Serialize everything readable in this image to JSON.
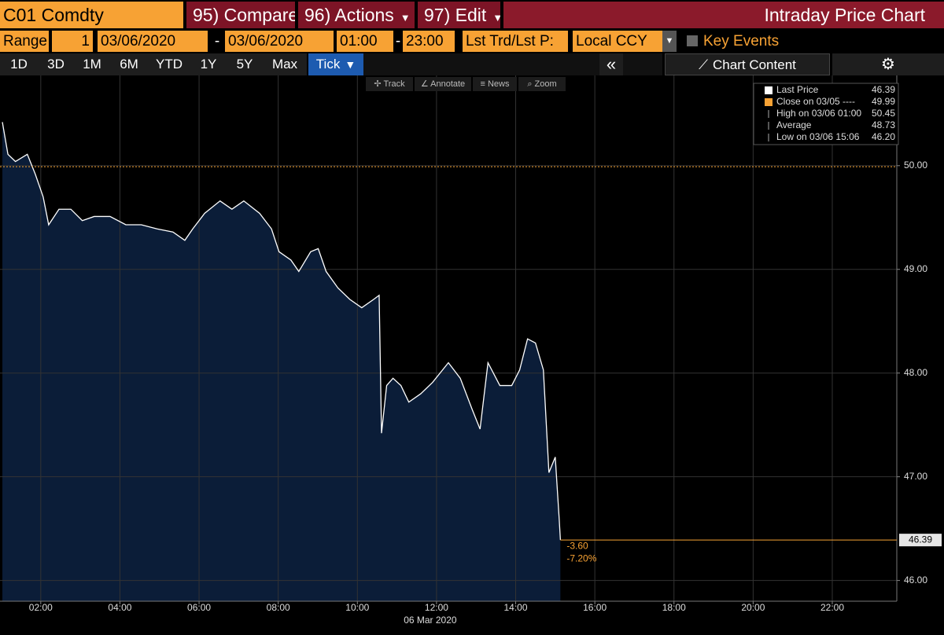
{
  "header": {
    "security": "C01 Comdty",
    "menu": [
      "95) Compare",
      "96) Actions",
      "97) Edit"
    ],
    "title": "Intraday Price Chart"
  },
  "range_bar": {
    "label": "Range",
    "period": "1",
    "start_date": "03/06/2020",
    "separator": "-",
    "end_date": "03/06/2020",
    "start_time": "01:00",
    "end_time": "23:00",
    "price_field": "Lst Trd/Lst P:",
    "currency": "Local CCY",
    "key_events": "Key Events"
  },
  "periods": [
    "1D",
    "3D",
    "1M",
    "6M",
    "YTD",
    "1Y",
    "5Y",
    "Max",
    "Tick"
  ],
  "chart_content": "Chart Content",
  "chart_toolbar": [
    "Track",
    "Annotate",
    "News",
    "Zoom"
  ],
  "chart_data": {
    "type": "area",
    "x": [
      1.03,
      1.17,
      1.36,
      1.66,
      1.86,
      2.06,
      2.2,
      2.46,
      2.76,
      3.05,
      3.35,
      3.75,
      4.15,
      4.54,
      4.94,
      5.34,
      5.64,
      5.84,
      6.14,
      6.53,
      6.83,
      7.13,
      7.53,
      7.83,
      8.02,
      8.32,
      8.52,
      8.82,
      9.01,
      9.21,
      9.51,
      9.81,
      10.11,
      10.41,
      10.55,
      10.61,
      10.74,
      10.9,
      11.1,
      11.3,
      11.6,
      11.9,
      12.3,
      12.6,
      12.9,
      13.1,
      13.3,
      13.6,
      13.9,
      14.1,
      14.3,
      14.5,
      14.7,
      14.84,
      15.0,
      15.1,
      15.13
    ],
    "values": [
      50.42,
      50.11,
      50.04,
      50.11,
      49.92,
      49.7,
      49.43,
      49.58,
      49.58,
      49.47,
      49.51,
      49.51,
      49.43,
      49.43,
      49.39,
      49.36,
      49.28,
      49.39,
      49.54,
      49.66,
      49.58,
      49.66,
      49.54,
      49.39,
      49.17,
      49.09,
      48.98,
      49.17,
      49.2,
      48.98,
      48.82,
      48.71,
      48.63,
      48.71,
      48.75,
      47.42,
      47.88,
      47.95,
      47.88,
      47.72,
      47.8,
      47.91,
      48.1,
      47.95,
      47.65,
      47.46,
      48.1,
      47.88,
      47.88,
      48.03,
      48.33,
      48.29,
      48.03,
      47.04,
      47.19,
      46.59,
      46.39
    ],
    "color": "#0b1d38",
    "line_color": "#ffffff",
    "xlim": [
      0.97,
      23.63
    ],
    "ylim": [
      45.8,
      50.87
    ],
    "xticks": [
      {
        "value": 2,
        "label": "02:00"
      },
      {
        "value": 4,
        "label": "04:00"
      },
      {
        "value": 6,
        "label": "06:00"
      },
      {
        "value": 8,
        "label": "08:00"
      },
      {
        "value": 10,
        "label": "10:00"
      },
      {
        "value": 12,
        "label": "12:00"
      },
      {
        "value": 14,
        "label": "14:00"
      },
      {
        "value": 16,
        "label": "16:00"
      },
      {
        "value": 18,
        "label": "18:00"
      },
      {
        "value": 20,
        "label": "20:00"
      },
      {
        "value": 22,
        "label": "22:00"
      }
    ],
    "yticks": [
      {
        "value": 46,
        "label": "46.00"
      },
      {
        "value": 47,
        "label": "47.00"
      },
      {
        "value": 48,
        "label": "48.00"
      },
      {
        "value": 49,
        "label": "49.00"
      },
      {
        "value": 50,
        "label": "50.00"
      }
    ],
    "x_label": "06 Mar 2020",
    "grid": true,
    "close": 49.99,
    "last": 46.39,
    "reference_color": "#f7a234",
    "change_labels": [
      "-3.60",
      "-7.20%"
    ],
    "legend": [
      {
        "label": "Last Price",
        "value": "46.39"
      },
      {
        "label": "Close on 03/05 ----",
        "value": "49.99"
      },
      {
        "label": "High on 03/06 01:00",
        "value": "50.45"
      },
      {
        "label": "Average",
        "value": "48.73"
      },
      {
        "label": "Low on 03/06 15:06",
        "value": "46.20"
      }
    ]
  }
}
